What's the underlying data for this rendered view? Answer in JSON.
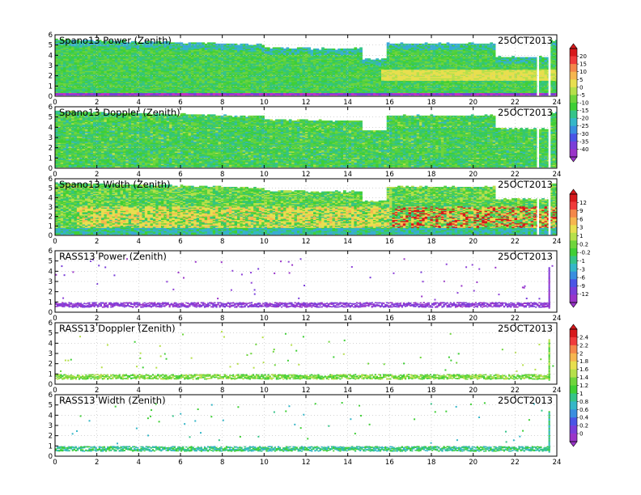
{
  "figure": {
    "date": "25OCT2013"
  },
  "axes": {
    "x_ticks": [
      "0",
      "2",
      "4",
      "6",
      "8",
      "10",
      "12",
      "14",
      "16",
      "18",
      "20",
      "22",
      "24"
    ],
    "y_ticks": [
      "0",
      "1",
      "2",
      "3",
      "4",
      "5",
      "6"
    ],
    "xlim": [
      0,
      24
    ],
    "ylim": [
      0,
      6
    ]
  },
  "colorbars": [
    {
      "id": "power-doppler",
      "ticks": [
        "20",
        "15",
        "10",
        "5",
        "0",
        "-5",
        "-10",
        "-15",
        "-20",
        "-25",
        "-30",
        "-35",
        "-40"
      ],
      "colors": [
        "#d7191c",
        "#f03b3b",
        "#f4874a",
        "#f6b64f",
        "#e8df4f",
        "#b6e04a",
        "#6fd53c",
        "#3fcf35",
        "#35c489",
        "#35b7c8",
        "#3a8ee0",
        "#4a55e6",
        "#7a3ed9",
        "#9a35c9"
      ]
    },
    {
      "id": "width-power",
      "ticks": [
        "12",
        "9",
        "6",
        "3",
        "1",
        "0.2",
        "-0.2",
        "-1",
        "-3",
        "-6",
        "-9",
        "-12"
      ],
      "colors": [
        "#d7191c",
        "#f03b3b",
        "#f4874a",
        "#f6b64f",
        "#e8df4f",
        "#b6e04a",
        "#6fd53c",
        "#3fcf35",
        "#35c489",
        "#35b7c8",
        "#3a8ee0",
        "#4a55e6",
        "#7a3ed9",
        "#9a35c9"
      ]
    },
    {
      "id": "doppler-width",
      "ticks": [
        "2.4",
        "2.2",
        "2",
        "1.8",
        "1.6",
        "1.4",
        "1.2",
        "1",
        "0.8",
        "0.6",
        "0.4",
        "0.2",
        "0"
      ],
      "colors": [
        "#d7191c",
        "#f03b3b",
        "#f4874a",
        "#f6b64f",
        "#e8df4f",
        "#b6e04a",
        "#6fd53c",
        "#3fcf35",
        "#35c489",
        "#35b7c8",
        "#3a8ee0",
        "#4a55e6",
        "#7a3ed9",
        "#9a35c9"
      ]
    }
  ],
  "chart_data": [
    {
      "type": "heatmap",
      "title": "Spano13 Power (Zenith)",
      "date": "25OCT2013",
      "x_range": [
        0,
        24
      ],
      "y_range": [
        0,
        6
      ],
      "description_levels": {
        "0-0.3": "magenta",
        "0.3-1.8": "green",
        "1.8-2.6": "yellow-green",
        "2.6-5": "green/cyan",
        "5-6": "blue/cyan"
      }
    },
    {
      "type": "heatmap",
      "title": "Spano13 Doppler (Zenith)",
      "date": "25OCT2013",
      "x_range": [
        0,
        24
      ],
      "y_range": [
        0,
        6
      ]
    },
    {
      "type": "heatmap",
      "title": "Spano13 Width (Zenith)",
      "date": "25OCT2013",
      "x_range": [
        0,
        24
      ],
      "y_range": [
        0,
        6
      ]
    },
    {
      "type": "scatter",
      "title": "RASS13 Power (Zenith)",
      "date": "25OCT2013",
      "x_range": [
        0,
        24
      ],
      "y_range": [
        0,
        6
      ]
    },
    {
      "type": "scatter",
      "title": "RASS13 Doppler (Zenith)",
      "date": "25OCT2013",
      "x_range": [
        0,
        24
      ],
      "y_range": [
        0,
        6
      ]
    },
    {
      "type": "scatter",
      "title": "RASS13 Width (Zenith)",
      "date": "25OCT2013",
      "x_range": [
        0,
        24
      ],
      "y_range": [
        0,
        6
      ]
    }
  ]
}
